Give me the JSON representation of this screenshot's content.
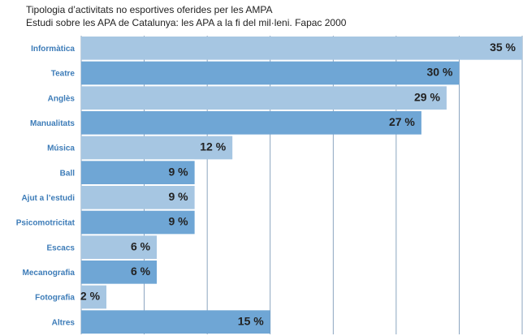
{
  "chart_data": {
    "type": "barh",
    "title": "Tipologia d’activitats no esportives oferides per les AMPA",
    "subtitle": "Estudi sobre les APA de Catalunya: les APA a la fi del mil·leni. Fapac 2000",
    "categories": [
      "Informàtica",
      "Teatre",
      "Anglès",
      "Manualitats",
      "Música",
      "Ball",
      "Ajut a l’estudi",
      "Psicomotricitat",
      "Escacs",
      "Mecanografia",
      "Fotografia",
      "Altres"
    ],
    "values": [
      35,
      30,
      29,
      27,
      12,
      9,
      9,
      9,
      6,
      6,
      2,
      15
    ],
    "value_labels": [
      "35 %",
      "30 %",
      "29 %",
      "27 %",
      "12 %",
      "9 %",
      "9 %",
      "9 %",
      "6 %",
      "6 %",
      "2 %",
      "15 %"
    ],
    "colors": [
      "#a6c6e2",
      "#6fa6d5",
      "#a6c6e2",
      "#6fa6d5",
      "#a6c6e2",
      "#6fa6d5",
      "#a6c6e2",
      "#6fa6d5",
      "#a6c6e2",
      "#6fa6d5",
      "#a6c6e2",
      "#6fa6d5"
    ],
    "xlim": [
      0,
      35
    ],
    "xticks": [
      0,
      5,
      10,
      15,
      20,
      25,
      30,
      35
    ],
    "grid": true
  }
}
